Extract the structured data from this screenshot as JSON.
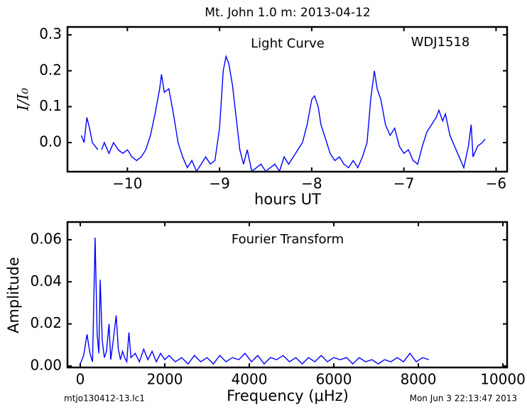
{
  "title": "Mt. John 1.0 m:  2013-04-12",
  "footer": {
    "left": "mtjo130412-13.lc1",
    "right": "Mon Jun  3 22:13:47 2013"
  },
  "chart_data": [
    {
      "type": "line",
      "annotations": [
        "Light Curve",
        "WDJ1518"
      ],
      "x_label": "hours UT",
      "y_label": "I/I₀",
      "xlim": [
        -10.65,
        -5.88
      ],
      "ylim": [
        -0.081,
        0.322
      ],
      "xticks": [
        {
          "value": -10,
          "label": "−10"
        },
        {
          "value": -9,
          "label": "−9"
        },
        {
          "value": -8,
          "label": "−8"
        },
        {
          "value": -7,
          "label": "−7"
        },
        {
          "value": -6,
          "label": "−6"
        }
      ],
      "yticks": [
        {
          "value": 0,
          "label": "0.0"
        },
        0.1,
        0.2,
        0.3
      ],
      "color": "#0000ff",
      "x": [
        -10.5,
        -10.47,
        -10.44,
        -10.41,
        -10.38,
        -10.35,
        -10.32,
        -10.3,
        -10.28,
        -10.25,
        -10.2,
        -10.15,
        -10.1,
        -10.05,
        -10.0,
        -9.95,
        -9.9,
        -9.85,
        -9.8,
        -9.75,
        -9.7,
        -9.65,
        -9.63,
        -9.6,
        -9.55,
        -9.5,
        -9.45,
        -9.4,
        -9.35,
        -9.3,
        -9.25,
        -9.2,
        -9.15,
        -9.1,
        -9.05,
        -9.0,
        -8.96,
        -8.93,
        -8.9,
        -8.86,
        -8.82,
        -8.78,
        -8.74,
        -8.7,
        -8.65,
        -8.6,
        -8.55,
        -8.5,
        -8.45,
        -8.4,
        -8.35,
        -8.3,
        -8.25,
        -8.2,
        -8.15,
        -8.1,
        -8.05,
        -8.0,
        -7.97,
        -7.93,
        -7.9,
        -7.85,
        -7.8,
        -7.75,
        -7.7,
        -7.65,
        -7.6,
        -7.55,
        -7.5,
        -7.45,
        -7.4,
        -7.36,
        -7.32,
        -7.29,
        -7.25,
        -7.2,
        -7.15,
        -7.1,
        -7.05,
        -7.0,
        -6.95,
        -6.9,
        -6.85,
        -6.8,
        -6.75,
        -6.7,
        -6.65,
        -6.62,
        -6.58,
        -6.55,
        -6.5,
        -6.45,
        -6.4,
        -6.35,
        -6.3,
        -6.27,
        -6.25,
        -6.2,
        -6.15,
        -6.12
      ],
      "values": [
        0.02,
        0.0,
        0.07,
        0.04,
        0.0,
        -0.01,
        -0.02,
        null,
        -0.02,
        0.0,
        -0.03,
        0.0,
        -0.02,
        -0.03,
        -0.02,
        -0.04,
        -0.05,
        -0.04,
        -0.02,
        0.02,
        0.08,
        0.15,
        0.19,
        0.14,
        0.15,
        0.08,
        0.0,
        -0.04,
        -0.07,
        -0.05,
        -0.08,
        -0.06,
        -0.04,
        -0.06,
        -0.05,
        0.04,
        0.2,
        0.24,
        0.22,
        0.16,
        0.07,
        -0.02,
        -0.06,
        -0.02,
        -0.08,
        -0.07,
        -0.06,
        -0.08,
        -0.07,
        -0.06,
        -0.08,
        -0.04,
        -0.06,
        -0.04,
        -0.02,
        0.0,
        0.05,
        0.12,
        0.13,
        0.1,
        0.05,
        0.01,
        -0.03,
        -0.05,
        -0.04,
        -0.06,
        -0.07,
        -0.05,
        -0.07,
        -0.04,
        0.0,
        0.12,
        0.2,
        0.15,
        0.12,
        0.05,
        0.02,
        0.04,
        -0.01,
        -0.03,
        -0.02,
        -0.05,
        -0.06,
        -0.01,
        0.03,
        0.05,
        0.07,
        0.09,
        0.06,
        0.08,
        0.02,
        -0.01,
        -0.04,
        -0.07,
        -0.01,
        0.05,
        -0.04,
        -0.01,
        0.0,
        0.01
      ]
    },
    {
      "type": "line",
      "annotations": [
        "Fourier Transform"
      ],
      "x_label": "Frequency (μHz)",
      "y_label": "Amplitude",
      "xlim": [
        -303,
        10100
      ],
      "ylim": [
        -0.0007,
        0.0684
      ],
      "xticks": [
        0,
        2000,
        4000,
        6000,
        8000,
        10000
      ],
      "yticks": [
        {
          "value": 0,
          "label": "0.00"
        },
        {
          "value": 0.02,
          "label": "0.02"
        },
        {
          "value": 0.04,
          "label": "0.04"
        },
        {
          "value": 0.06,
          "label": "0.06"
        }
      ],
      "color": "#0000ff",
      "x": [
        0,
        80,
        160,
        230,
        290,
        350,
        400,
        440,
        470,
        520,
        570,
        620,
        680,
        720,
        780,
        850,
        900,
        950,
        1000,
        1050,
        1100,
        1150,
        1200,
        1300,
        1400,
        1500,
        1600,
        1700,
        1800,
        1900,
        2000,
        2100,
        2250,
        2400,
        2550,
        2700,
        2850,
        3000,
        3150,
        3300,
        3450,
        3600,
        3750,
        3900,
        4050,
        4200,
        4350,
        4500,
        4650,
        4800,
        4950,
        5100,
        5250,
        5400,
        5550,
        5700,
        5850,
        6000,
        6150,
        6300,
        6450,
        6600,
        6750,
        6900,
        7050,
        7200,
        7350,
        7500,
        7650,
        7800,
        7950,
        8100,
        8250
      ],
      "values": [
        0.001,
        0.005,
        0.015,
        0.006,
        0.002,
        0.061,
        0.015,
        0.006,
        0.041,
        0.012,
        0.004,
        0.007,
        0.02,
        0.003,
        0.012,
        0.024,
        0.008,
        0.003,
        0.007,
        0.004,
        0.002,
        0.016,
        0.004,
        0.006,
        0.002,
        0.008,
        0.003,
        0.007,
        0.002,
        0.006,
        0.003,
        0.005,
        0.002,
        0.004,
        0.001,
        0.005,
        0.002,
        0.004,
        0.001,
        0.005,
        0.002,
        0.004,
        0.003,
        0.006,
        0.002,
        0.005,
        0.001,
        0.004,
        0.003,
        0.005,
        0.002,
        0.004,
        0.001,
        0.004,
        0.002,
        0.005,
        0.002,
        0.004,
        0.003,
        0.004,
        0.001,
        0.004,
        0.002,
        0.003,
        0.001,
        0.003,
        0.002,
        0.004,
        0.002,
        0.006,
        0.002,
        0.004,
        0.003
      ]
    }
  ]
}
